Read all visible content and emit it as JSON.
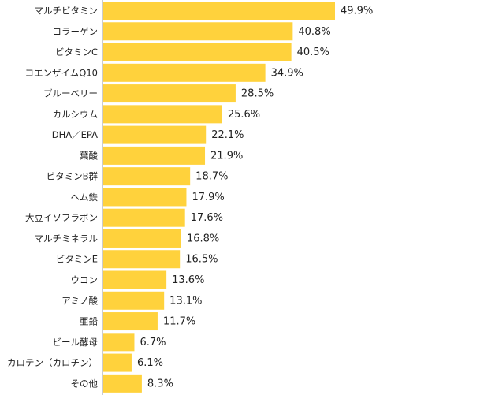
{
  "chart_data": {
    "type": "bar",
    "orientation": "horizontal",
    "categories": [
      "マルチビタミン",
      "コラーゲン",
      "ビタミンC",
      "コエンザイムQ10",
      "ブルーベリー",
      "カルシウム",
      "DHA／EPA",
      "葉酸",
      "ビタミンB群",
      "ヘム鉄",
      "大豆イソフラボン",
      "マルチミネラル",
      "ビタミンE",
      "ウコン",
      "アミノ酸",
      "亜鉛",
      "ビール酵母",
      "カロテン（カロチン）",
      "その他"
    ],
    "values": [
      49.9,
      40.8,
      40.5,
      34.9,
      28.5,
      25.6,
      22.1,
      21.9,
      18.7,
      17.9,
      17.6,
      16.8,
      16.5,
      13.6,
      13.1,
      11.7,
      6.7,
      6.1,
      8.3
    ],
    "value_labels": [
      "49.9%",
      "40.8%",
      "40.5%",
      "34.9%",
      "28.5%",
      "25.6%",
      "22.1%",
      "21.9%",
      "18.7%",
      "17.9%",
      "17.6%",
      "16.8%",
      "16.5%",
      "13.6%",
      "13.1%",
      "11.7%",
      "6.7%",
      "6.1%",
      "8.3%"
    ],
    "unit": "%",
    "xlim": [
      0,
      60
    ],
    "grid": false,
    "legend": "none",
    "title": "",
    "xlabel": "",
    "ylabel": "",
    "bar_color": "#FFD23C",
    "axis_color": "#999999",
    "text_color": "#222222"
  }
}
